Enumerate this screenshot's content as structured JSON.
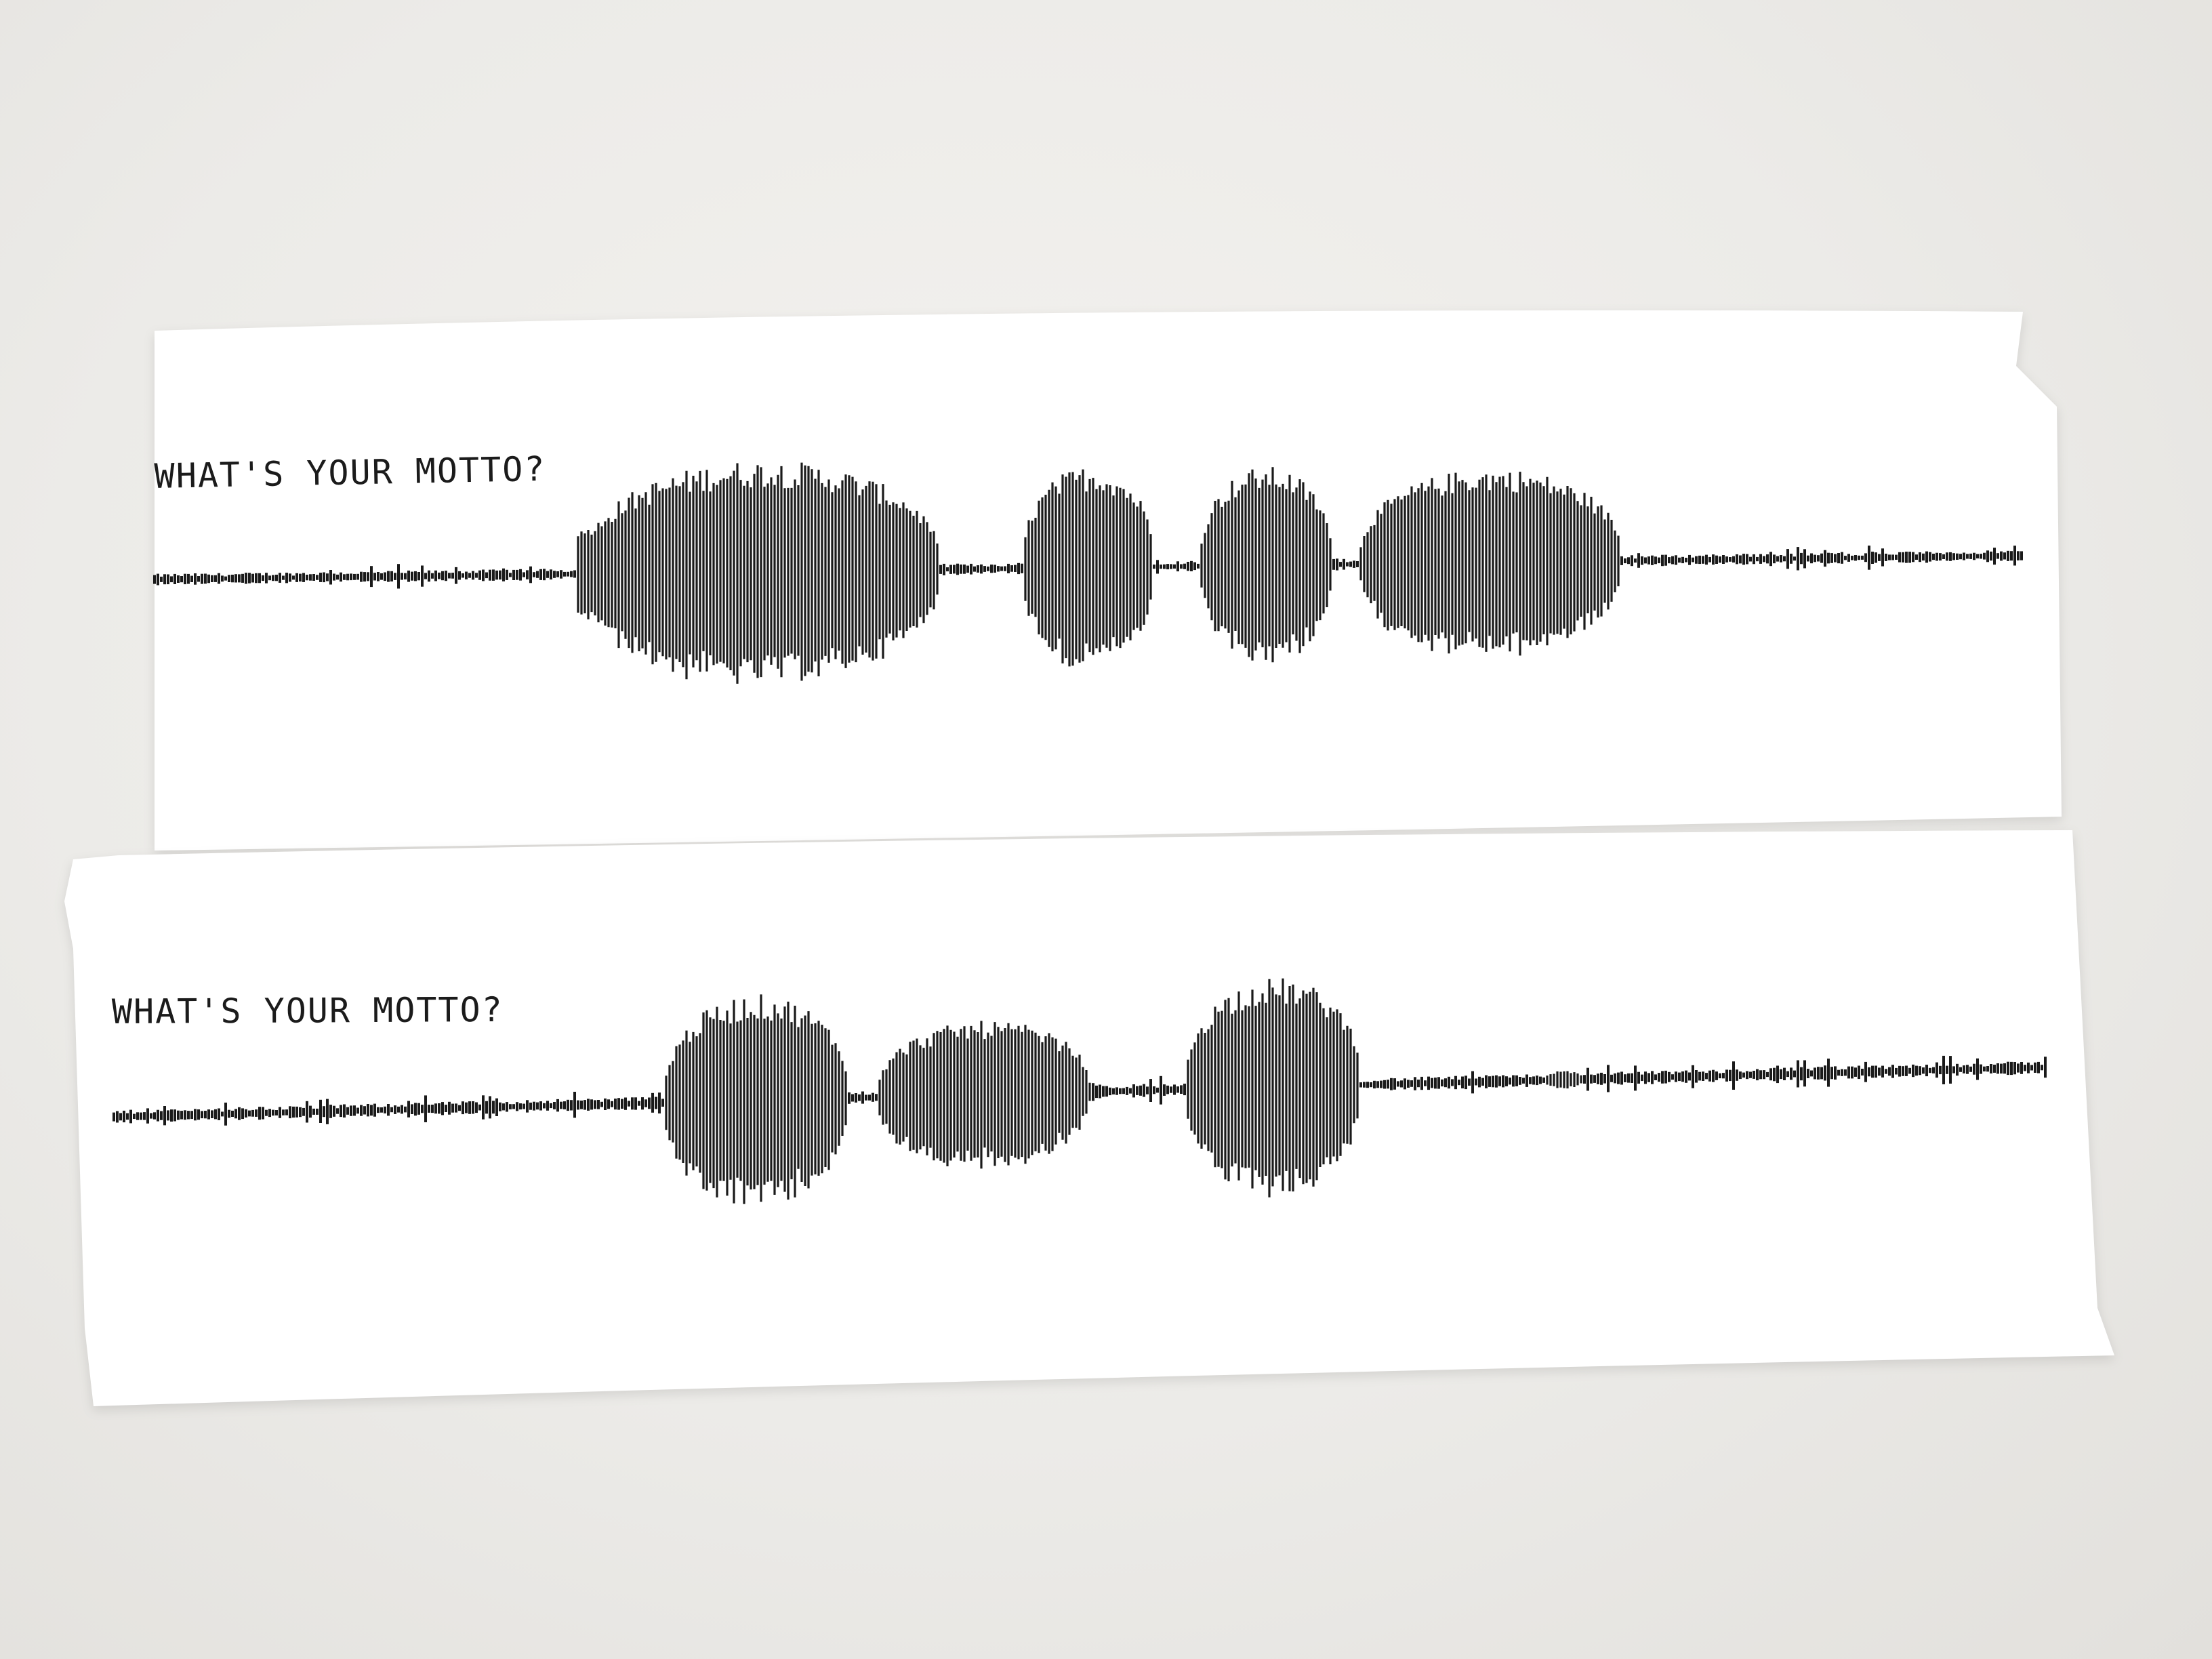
{
  "scene": {
    "description_free": true,
    "background_color": "#eceae7",
    "paper_color": "#ffffff",
    "ink_color": "#1a1a1a"
  },
  "strips": [
    {
      "caption": "WHAT'S YOUR MOTTO?",
      "bursts": [
        {
          "start": 0.225,
          "end": 0.235,
          "amp": 0.45
        },
        {
          "start": 0.23,
          "end": 0.42,
          "amp": 0.97
        },
        {
          "start": 0.465,
          "end": 0.535,
          "amp": 0.88
        },
        {
          "start": 0.56,
          "end": 0.63,
          "amp": 0.86
        },
        {
          "start": 0.645,
          "end": 0.785,
          "amp": 0.82
        }
      ]
    },
    {
      "caption": "WHAT'S YOUR MOTTO?",
      "bursts": [
        {
          "start": 0.285,
          "end": 0.38,
          "amp": 0.95
        },
        {
          "start": 0.395,
          "end": 0.505,
          "amp": 0.66
        },
        {
          "start": 0.555,
          "end": 0.645,
          "amp": 0.98
        },
        {
          "start": 0.74,
          "end": 0.76,
          "amp": 0.08
        }
      ]
    }
  ]
}
